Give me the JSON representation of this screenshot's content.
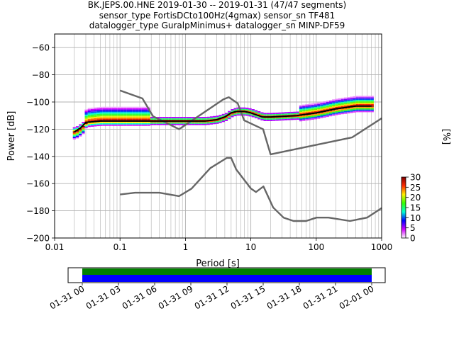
{
  "title_lines": [
    "BK.JEPS.00.HNE   2019-01-30 -- 2019-01-31  (47/47 segments)",
    "sensor_type FortisDCto100Hz(4gmax) sensor_sn TF481",
    "datalogger_type GuralpMinimus+ datalogger_sn MINP-DF59"
  ],
  "chart_data": {
    "type": "line",
    "xlabel": "Period [s]",
    "ylabel": "Power [dB]",
    "xscale": "log",
    "xlim": [
      0.01,
      1000
    ],
    "ylim": [
      -200,
      -50
    ],
    "xticks": [
      0.01,
      0.1,
      1,
      10,
      100,
      1000
    ],
    "xtick_labels": [
      "0.01",
      "0.1",
      "1",
      "10",
      "100",
      "1000"
    ],
    "yticks": [
      -200,
      -180,
      -160,
      -140,
      -120,
      -100,
      -80,
      -60
    ],
    "ytick_labels": [
      "−200",
      "−180",
      "−160",
      "−140",
      "−120",
      "−100",
      "−80",
      "−60"
    ],
    "grid": true,
    "series": [
      {
        "role": "noise-model-high",
        "color": "#666666",
        "x": [
          0.1,
          0.22,
          0.32,
          0.8,
          3.8,
          4.6,
          6.3,
          7.9,
          15.4,
          20,
          354.8,
          1000
        ],
        "y": [
          -91.5,
          -97.4,
          -110.5,
          -120,
          -98,
          -96.5,
          -101,
          -113.5,
          -120,
          -138.5,
          -126,
          -112
        ]
      },
      {
        "role": "noise-model-low",
        "color": "#666666",
        "x": [
          0.1,
          0.17,
          0.4,
          0.8,
          1.24,
          2.4,
          4.3,
          5,
          6,
          10,
          12,
          15.6,
          21.9,
          31.6,
          45,
          70,
          101,
          154,
          328,
          600,
          1000
        ],
        "y": [
          -168,
          -166.7,
          -166.7,
          -169.2,
          -163.7,
          -148.6,
          -141.1,
          -141.1,
          -149.7,
          -163.6,
          -166.2,
          -162.1,
          -177.5,
          -185,
          -187.5,
          -187.5,
          -185,
          -185,
          -187.5,
          -185,
          -178
        ]
      },
      {
        "role": "mean",
        "color": "#000000",
        "x": [
          0.02,
          0.025,
          0.03,
          0.05,
          0.1,
          0.2,
          0.5,
          1,
          2,
          3,
          4,
          5,
          6,
          7,
          8,
          10,
          15,
          20,
          50,
          100,
          200,
          400,
          700
        ],
        "y": [
          -122,
          -119,
          -115,
          -114,
          -114,
          -114,
          -114,
          -114,
          -114,
          -113,
          -111,
          -108,
          -107,
          -107,
          -107,
          -108,
          -111,
          -111,
          -110,
          -108,
          -105,
          -103,
          -103
        ]
      }
    ],
    "colorbar": {
      "label": "[%]",
      "min": 0,
      "max": 30,
      "ticks": [
        0,
        5,
        10,
        15,
        20,
        25,
        30
      ],
      "tick_labels": [
        "0",
        "5",
        "10",
        "15",
        "20",
        "25",
        "30"
      ],
      "colors": [
        "#ffffff",
        "#d200ff",
        "#0000ff",
        "#00ffd4",
        "#33ff00",
        "#ffee00",
        "#ff2a00",
        "#800000"
      ]
    }
  },
  "timeline": {
    "ticks": [
      "01-31 00",
      "01-31 03",
      "01-31 06",
      "01-31 09",
      "01-31 12",
      "01-31 15",
      "01-31 18",
      "01-31 21",
      "02-01 00"
    ],
    "coverage_colors": [
      "#008000",
      "#0000ff"
    ]
  }
}
